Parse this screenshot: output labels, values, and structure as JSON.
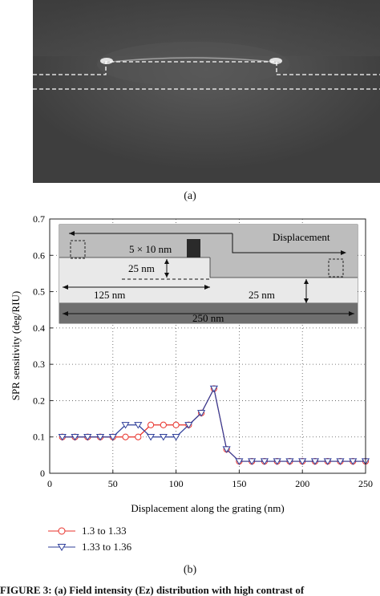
{
  "figure": {
    "panel_a_label": "(a)",
    "panel_b_label": "(b)",
    "footer_text": "FIGURE 3: (a) Field intensity (Ez) distribution with high contrast of"
  },
  "inset": {
    "size_label": "5 × 10 nm",
    "displacement_label": "Displacement",
    "depth_label": "25 nm",
    "width_label": "125 nm",
    "thickness_label": "25 nm",
    "period_label": "250 nm"
  },
  "colors": {
    "series1": "#e8312a",
    "series2": "#2f3f9a"
  },
  "chart_data": {
    "type": "line",
    "xlabel": "Displacement along the grating (nm)",
    "ylabel": "SPR sensitivity (deg/RIU)",
    "xlim": [
      0,
      250
    ],
    "ylim": [
      0,
      0.7
    ],
    "xticks": [
      0,
      50,
      100,
      150,
      200,
      250
    ],
    "yticks": [
      0,
      0.1,
      0.2,
      0.3,
      0.4,
      0.5,
      0.6,
      0.7
    ],
    "grid": true,
    "legend_position": "below-left",
    "x": [
      10,
      20,
      30,
      40,
      50,
      60,
      70,
      80,
      90,
      100,
      110,
      120,
      130,
      140,
      150,
      160,
      170,
      180,
      190,
      200,
      210,
      220,
      230,
      240,
      250
    ],
    "series": [
      {
        "name": "1.3 to 1.33",
        "marker": "circle",
        "values": [
          0.1,
          0.1,
          0.1,
          0.1,
          0.1,
          0.1,
          0.1,
          0.133,
          0.133,
          0.133,
          0.133,
          0.166,
          0.233,
          0.066,
          0.033,
          0.033,
          0.033,
          0.033,
          0.033,
          0.033,
          0.033,
          0.033,
          0.033,
          0.033,
          0.033
        ]
      },
      {
        "name": "1.33 to 1.36",
        "marker": "triangle",
        "values": [
          0.1,
          0.1,
          0.1,
          0.1,
          0.1,
          0.133,
          0.133,
          0.1,
          0.1,
          0.1,
          0.133,
          0.166,
          0.233,
          0.066,
          0.033,
          0.033,
          0.033,
          0.033,
          0.033,
          0.033,
          0.033,
          0.033,
          0.033,
          0.033,
          0.033
        ]
      }
    ]
  }
}
